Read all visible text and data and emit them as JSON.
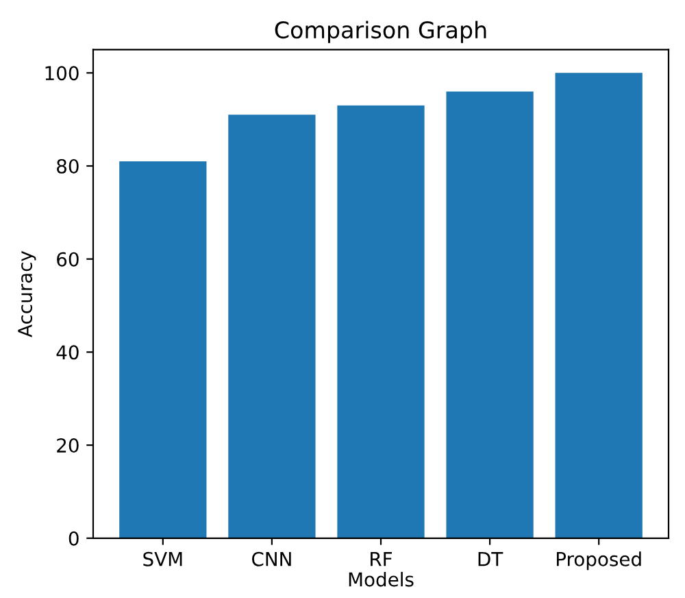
{
  "chart_data": {
    "type": "bar",
    "title": "Comparison Graph",
    "xlabel": "Models",
    "ylabel": "Accuracy",
    "categories": [
      "SVM",
      "CNN",
      "RF",
      "DT",
      "Proposed"
    ],
    "values": [
      81,
      91,
      93,
      96,
      100
    ],
    "color": "#1f77b4",
    "ylim": [
      0,
      105
    ],
    "yticks": [
      0,
      20,
      40,
      60,
      80,
      100
    ],
    "grid": false
  }
}
